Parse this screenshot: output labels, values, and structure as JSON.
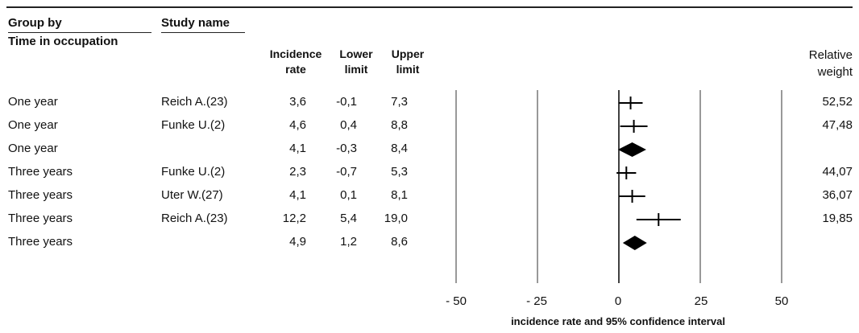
{
  "headers": {
    "group_by": "Group by",
    "study_name": "Study name",
    "subgroup": "Time in occupation",
    "incidence_line1": "Incidence",
    "incidence_line2": "rate",
    "lower_line1": "Lower",
    "lower_line2": "limit",
    "upper_line1": "Upper",
    "upper_line2": "limit",
    "weight_line1": "Relative",
    "weight_line2": "weight"
  },
  "rows": [
    {
      "group": "One year",
      "study": "Reich A.(23)",
      "rate": "3,6",
      "lower": "-0,1",
      "upper": "7,3",
      "weight": "52,52"
    },
    {
      "group": "One year",
      "study": "Funke U.(2)",
      "rate": "4,6",
      "lower": "0,4",
      "upper": "8,8",
      "weight": "47,48"
    },
    {
      "group": "One year",
      "study": "",
      "rate": "4,1",
      "lower": "-0,3",
      "upper": "8,4",
      "weight": ""
    },
    {
      "group": "Three years",
      "study": "Funke U.(2)",
      "rate": "2,3",
      "lower": "-0,7",
      "upper": "5,3",
      "weight": "44,07"
    },
    {
      "group": "Three years",
      "study": "Uter W.(27)",
      "rate": "4,1",
      "lower": "0,1",
      "upper": "8,1",
      "weight": "36,07"
    },
    {
      "group": "Three years",
      "study": "Reich A.(23)",
      "rate": "12,2",
      "lower": "5,4",
      "upper": "19,0",
      "weight": "19,85"
    },
    {
      "group": "Three years",
      "study": "",
      "rate": "4,9",
      "lower": "1,2",
      "upper": "8,6",
      "weight": ""
    }
  ],
  "axis": {
    "tick_labels": [
      "- 50",
      "- 25",
      "0",
      "25",
      "50"
    ],
    "title": "incidence rate and 95% confidence interval"
  },
  "chart_data": {
    "type": "forest",
    "x_range": [
      -50,
      50
    ],
    "x_ticks": [
      -50,
      -25,
      0,
      25,
      50
    ],
    "xlabel": "incidence rate and 95% confidence interval",
    "points": [
      {
        "group": "One year",
        "study": "Reich A.(23)",
        "estimate": 3.6,
        "lower": -0.1,
        "upper": 7.3,
        "weight": 52.52,
        "kind": "study"
      },
      {
        "group": "One year",
        "study": "Funke U.(2)",
        "estimate": 4.6,
        "lower": 0.4,
        "upper": 8.8,
        "weight": 47.48,
        "kind": "study"
      },
      {
        "group": "One year",
        "study": "",
        "estimate": 4.1,
        "lower": -0.3,
        "upper": 8.4,
        "kind": "summary"
      },
      {
        "group": "Three years",
        "study": "Funke U.(2)",
        "estimate": 2.3,
        "lower": -0.7,
        "upper": 5.3,
        "weight": 44.07,
        "kind": "study"
      },
      {
        "group": "Three years",
        "study": "Uter W.(27)",
        "estimate": 4.1,
        "lower": 0.1,
        "upper": 8.1,
        "weight": 36.07,
        "kind": "study"
      },
      {
        "group": "Three years",
        "study": "Reich A.(23)",
        "estimate": 12.2,
        "lower": 5.4,
        "upper": 19.0,
        "weight": 19.85,
        "kind": "study"
      },
      {
        "group": "Three years",
        "study": "",
        "estimate": 4.9,
        "lower": 1.2,
        "upper": 8.6,
        "kind": "summary"
      }
    ]
  }
}
